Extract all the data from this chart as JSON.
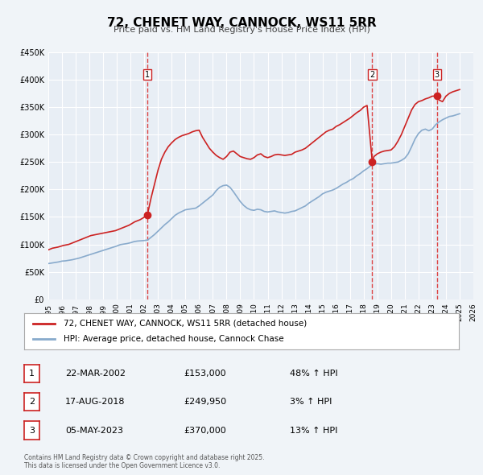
{
  "title": "72, CHENET WAY, CANNOCK, WS11 5RR",
  "subtitle": "Price paid vs. HM Land Registry's House Price Index (HPI)",
  "background_color": "#f0f4f8",
  "plot_bg_color": "#e8eef5",
  "grid_color": "#ffffff",
  "xlabel": "",
  "ylabel": "",
  "ylim": [
    0,
    450000
  ],
  "xlim_start": 1995.0,
  "xlim_end": 2026.0,
  "yticks": [
    0,
    50000,
    100000,
    150000,
    200000,
    250000,
    300000,
    350000,
    400000,
    450000
  ],
  "ytick_labels": [
    "£0",
    "£50K",
    "£100K",
    "£150K",
    "£200K",
    "£250K",
    "£300K",
    "£350K",
    "£400K",
    "£450K"
  ],
  "xticks": [
    1995,
    1996,
    1997,
    1998,
    1999,
    2000,
    2001,
    2002,
    2003,
    2004,
    2005,
    2006,
    2007,
    2008,
    2009,
    2010,
    2011,
    2012,
    2013,
    2014,
    2015,
    2016,
    2017,
    2018,
    2019,
    2020,
    2021,
    2022,
    2023,
    2024,
    2025,
    2026
  ],
  "red_line_color": "#cc2222",
  "blue_line_color": "#88aacc",
  "dashed_line_color": "#dd4444",
  "sale_marker_color": "#cc2222",
  "sale_dates": [
    2002.22,
    2018.63,
    2023.34
  ],
  "sale_prices": [
    153000,
    249950,
    370000
  ],
  "sale_labels": [
    "1",
    "2",
    "3"
  ],
  "legend_label_red": "72, CHENET WAY, CANNOCK, WS11 5RR (detached house)",
  "legend_label_blue": "HPI: Average price, detached house, Cannock Chase",
  "table_rows": [
    {
      "num": "1",
      "date": "22-MAR-2002",
      "price": "£153,000",
      "hpi": "48% ↑ HPI"
    },
    {
      "num": "2",
      "date": "17-AUG-2018",
      "price": "£249,950",
      "hpi": "3% ↑ HPI"
    },
    {
      "num": "3",
      "date": "05-MAY-2023",
      "price": "£370,000",
      "hpi": "13% ↑ HPI"
    }
  ],
  "footnote": "Contains HM Land Registry data © Crown copyright and database right 2025.\nThis data is licensed under the Open Government Licence v3.0.",
  "hpi_x": [
    1995.0,
    1995.25,
    1995.5,
    1995.75,
    1996.0,
    1996.25,
    1996.5,
    1996.75,
    1997.0,
    1997.25,
    1997.5,
    1997.75,
    1998.0,
    1998.25,
    1998.5,
    1998.75,
    1999.0,
    1999.25,
    1999.5,
    1999.75,
    2000.0,
    2000.25,
    2000.5,
    2000.75,
    2001.0,
    2001.25,
    2001.5,
    2001.75,
    2002.0,
    2002.25,
    2002.5,
    2002.75,
    2003.0,
    2003.25,
    2003.5,
    2003.75,
    2004.0,
    2004.25,
    2004.5,
    2004.75,
    2005.0,
    2005.25,
    2005.5,
    2005.75,
    2006.0,
    2006.25,
    2006.5,
    2006.75,
    2007.0,
    2007.25,
    2007.5,
    2007.75,
    2008.0,
    2008.25,
    2008.5,
    2008.75,
    2009.0,
    2009.25,
    2009.5,
    2009.75,
    2010.0,
    2010.25,
    2010.5,
    2010.75,
    2011.0,
    2011.25,
    2011.5,
    2011.75,
    2012.0,
    2012.25,
    2012.5,
    2012.75,
    2013.0,
    2013.25,
    2013.5,
    2013.75,
    2014.0,
    2014.25,
    2014.5,
    2014.75,
    2015.0,
    2015.25,
    2015.5,
    2015.75,
    2016.0,
    2016.25,
    2016.5,
    2016.75,
    2017.0,
    2017.25,
    2017.5,
    2017.75,
    2018.0,
    2018.25,
    2018.5,
    2018.75,
    2019.0,
    2019.25,
    2019.5,
    2019.75,
    2020.0,
    2020.25,
    2020.5,
    2020.75,
    2021.0,
    2021.25,
    2021.5,
    2021.75,
    2022.0,
    2022.25,
    2022.5,
    2022.75,
    2023.0,
    2023.25,
    2023.5,
    2023.75,
    2024.0,
    2024.25,
    2024.5,
    2024.75,
    2025.0
  ],
  "hpi_y": [
    65000,
    66000,
    67000,
    68000,
    69500,
    70000,
    71000,
    72000,
    73500,
    75000,
    77000,
    79000,
    81000,
    83000,
    85000,
    87000,
    89000,
    91000,
    93000,
    95000,
    97000,
    99500,
    100500,
    101500,
    103000,
    105000,
    106000,
    106500,
    107000,
    108000,
    113000,
    118000,
    124000,
    130000,
    136000,
    141000,
    147000,
    153000,
    157000,
    160000,
    163000,
    164000,
    165000,
    166000,
    170000,
    175000,
    180000,
    185000,
    190000,
    198000,
    204000,
    207000,
    208000,
    204000,
    196000,
    187000,
    178000,
    171000,
    166000,
    163000,
    162000,
    164000,
    163000,
    160000,
    159000,
    160000,
    161000,
    159000,
    158000,
    157000,
    158000,
    160000,
    161000,
    164000,
    167000,
    170000,
    175000,
    179000,
    183000,
    187000,
    192000,
    195000,
    197000,
    199000,
    202000,
    206000,
    210000,
    213000,
    217000,
    220000,
    225000,
    229000,
    234000,
    238000,
    243000,
    246000,
    247000,
    246000,
    247000,
    248000,
    248000,
    249000,
    250000,
    253000,
    257000,
    265000,
    278000,
    292000,
    302000,
    308000,
    310000,
    307000,
    310000,
    318000,
    323000,
    327000,
    330000,
    333000,
    334000,
    336000,
    338000
  ],
  "red_x": [
    1995.0,
    1995.1,
    1995.2,
    1995.3,
    1995.5,
    1995.7,
    1995.9,
    1996.1,
    1996.3,
    1996.5,
    1996.7,
    1996.9,
    1997.1,
    1997.3,
    1997.5,
    1997.7,
    1997.9,
    1998.1,
    1998.3,
    1998.5,
    1998.7,
    1998.9,
    1999.1,
    1999.3,
    1999.5,
    1999.7,
    1999.9,
    2000.1,
    2000.3,
    2000.5,
    2000.7,
    2000.9,
    2001.1,
    2001.3,
    2001.5,
    2001.7,
    2001.9,
    2002.22,
    2002.5,
    2002.75,
    2003.0,
    2003.25,
    2003.5,
    2003.75,
    2004.0,
    2004.25,
    2004.5,
    2004.75,
    2005.0,
    2005.25,
    2005.5,
    2005.75,
    2006.0,
    2006.25,
    2006.5,
    2006.75,
    2007.0,
    2007.25,
    2007.5,
    2007.75,
    2008.0,
    2008.25,
    2008.5,
    2008.75,
    2009.0,
    2009.25,
    2009.5,
    2009.75,
    2010.0,
    2010.25,
    2010.5,
    2010.75,
    2011.0,
    2011.25,
    2011.5,
    2011.75,
    2012.0,
    2012.25,
    2012.5,
    2012.75,
    2013.0,
    2013.25,
    2013.5,
    2013.75,
    2014.0,
    2014.25,
    2014.5,
    2014.75,
    2015.0,
    2015.25,
    2015.5,
    2015.75,
    2016.0,
    2016.25,
    2016.5,
    2016.75,
    2017.0,
    2017.25,
    2017.5,
    2017.75,
    2018.0,
    2018.25,
    2018.63,
    2018.75,
    2019.0,
    2019.25,
    2019.5,
    2019.75,
    2020.0,
    2020.25,
    2020.5,
    2020.75,
    2021.0,
    2021.25,
    2021.5,
    2021.75,
    2022.0,
    2022.25,
    2022.5,
    2022.75,
    2023.0,
    2023.34,
    2023.5,
    2023.75,
    2024.0,
    2024.25,
    2024.5,
    2024.75,
    2025.0
  ],
  "red_y": [
    90000,
    91000,
    92000,
    93000,
    94000,
    95000,
    96500,
    98000,
    99000,
    100000,
    102000,
    104000,
    106000,
    108000,
    110000,
    112000,
    114000,
    116000,
    117000,
    118000,
    119000,
    120000,
    121000,
    122000,
    123000,
    124000,
    125000,
    127000,
    129000,
    131000,
    133000,
    135000,
    138000,
    141000,
    143000,
    145000,
    148000,
    153000,
    185000,
    210000,
    235000,
    255000,
    268000,
    278000,
    285000,
    291000,
    295000,
    298000,
    300000,
    302000,
    305000,
    307000,
    308000,
    295000,
    285000,
    275000,
    268000,
    262000,
    258000,
    255000,
    260000,
    268000,
    270000,
    265000,
    260000,
    258000,
    256000,
    255000,
    258000,
    263000,
    265000,
    260000,
    258000,
    260000,
    263000,
    264000,
    263000,
    262000,
    263000,
    264000,
    268000,
    270000,
    272000,
    275000,
    280000,
    285000,
    290000,
    295000,
    300000,
    305000,
    308000,
    310000,
    315000,
    318000,
    322000,
    326000,
    330000,
    335000,
    340000,
    344000,
    350000,
    353000,
    249950,
    260000,
    265000,
    268000,
    270000,
    271000,
    272000,
    278000,
    288000,
    300000,
    315000,
    330000,
    345000,
    355000,
    360000,
    362000,
    365000,
    367000,
    370000,
    370000,
    363000,
    360000,
    370000,
    375000,
    378000,
    380000,
    382000
  ]
}
